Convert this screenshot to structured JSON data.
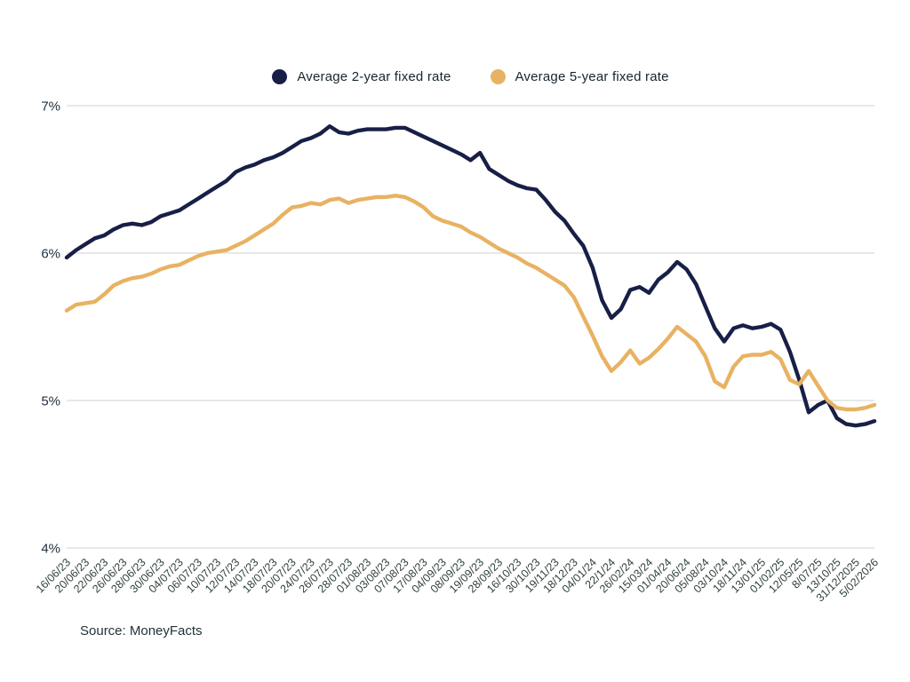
{
  "source_text": "Source: MoneyFacts",
  "colors": {
    "series_2yr": "#181f47",
    "series_5yr": "#e8b263",
    "gridline": "#e8e8e8",
    "y_tick_text": "#22303d",
    "x_tick_text": "#2f413d",
    "legend_text": "#16262e",
    "background": "#ffffff"
  },
  "chart_data": {
    "type": "line",
    "title": "",
    "xlabel": "",
    "ylabel": "",
    "ylim": [
      4,
      7
    ],
    "grid": "horizontal",
    "legend_position": "top-center",
    "y_ticks": [
      {
        "label": "7%",
        "value": 7
      },
      {
        "label": "6%",
        "value": 6
      },
      {
        "label": "5%",
        "value": 5
      },
      {
        "label": "4%",
        "value": 4
      }
    ],
    "x_labels": [
      "16/06/23",
      "20/06/23",
      "22/06/23",
      "26/06/23",
      "28/06/23",
      "30/06/23",
      "04/07/23",
      "06/07/23",
      "10/07/23",
      "12/07/23",
      "14/07/23",
      "18/07/23",
      "20/07/23",
      "24/07/23",
      "26/07/23",
      "28/07/23",
      "01/08/23",
      "03/08/23",
      "07/08/23",
      "17/08/23",
      "04/09/23",
      "08/09/23",
      "19/09/23",
      "28/09/23",
      "16/10/23",
      "30/10/23",
      "19/11/23",
      "18/12/23",
      "04/01/24",
      "22/1/24",
      "26/02/24",
      "15/03/24",
      "01/04/24",
      "20/06/24",
      "05/08/24",
      "03/10/24",
      "18/11/24",
      "13/01/25",
      "01/02/25",
      "12/05/25",
      "8/07/25",
      "13/10/25",
      "31/12/2025",
      "5/02/2026"
    ],
    "label_every_n_points": 2,
    "series": [
      {
        "name": "Average 2-year fixed rate",
        "color": "#181f47",
        "values": [
          5.97,
          6.02,
          6.06,
          6.1,
          6.12,
          6.16,
          6.19,
          6.2,
          6.19,
          6.21,
          6.25,
          6.27,
          6.29,
          6.33,
          6.37,
          6.41,
          6.45,
          6.49,
          6.55,
          6.58,
          6.6,
          6.63,
          6.65,
          6.68,
          6.72,
          6.76,
          6.78,
          6.81,
          6.86,
          6.82,
          6.81,
          6.83,
          6.84,
          6.84,
          6.84,
          6.85,
          6.85,
          6.82,
          6.79,
          6.76,
          6.73,
          6.7,
          6.67,
          6.63,
          6.68,
          6.57,
          6.53,
          6.49,
          6.46,
          6.44,
          6.43,
          6.36,
          6.28,
          6.22,
          6.13,
          6.05,
          5.9,
          5.68,
          5.56,
          5.62,
          5.75,
          5.77,
          5.73,
          5.82,
          5.87,
          5.94,
          5.89,
          5.79,
          5.64,
          5.49,
          5.4,
          5.49,
          5.51,
          5.49,
          5.5,
          5.52,
          5.48,
          5.33,
          5.14,
          4.92,
          4.97,
          5.0,
          4.88,
          4.84,
          4.83,
          4.84,
          4.86
        ]
      },
      {
        "name": "Average 5-year fixed rate",
        "color": "#e8b263",
        "values": [
          5.61,
          5.65,
          5.66,
          5.67,
          5.72,
          5.78,
          5.81,
          5.83,
          5.84,
          5.86,
          5.89,
          5.91,
          5.92,
          5.95,
          5.98,
          6.0,
          6.01,
          6.02,
          6.05,
          6.08,
          6.12,
          6.16,
          6.2,
          6.26,
          6.31,
          6.32,
          6.34,
          6.33,
          6.36,
          6.37,
          6.34,
          6.36,
          6.37,
          6.38,
          6.38,
          6.39,
          6.38,
          6.35,
          6.31,
          6.25,
          6.22,
          6.2,
          6.18,
          6.14,
          6.11,
          6.07,
          6.03,
          6.0,
          5.97,
          5.93,
          5.9,
          5.86,
          5.82,
          5.78,
          5.7,
          5.57,
          5.44,
          5.3,
          5.2,
          5.26,
          5.34,
          5.25,
          5.29,
          5.35,
          5.42,
          5.5,
          5.45,
          5.4,
          5.3,
          5.13,
          5.09,
          5.23,
          5.3,
          5.31,
          5.31,
          5.33,
          5.28,
          5.14,
          5.11,
          5.2,
          5.1,
          5.0,
          4.95,
          4.94,
          4.94,
          4.95,
          4.97
        ]
      }
    ]
  }
}
